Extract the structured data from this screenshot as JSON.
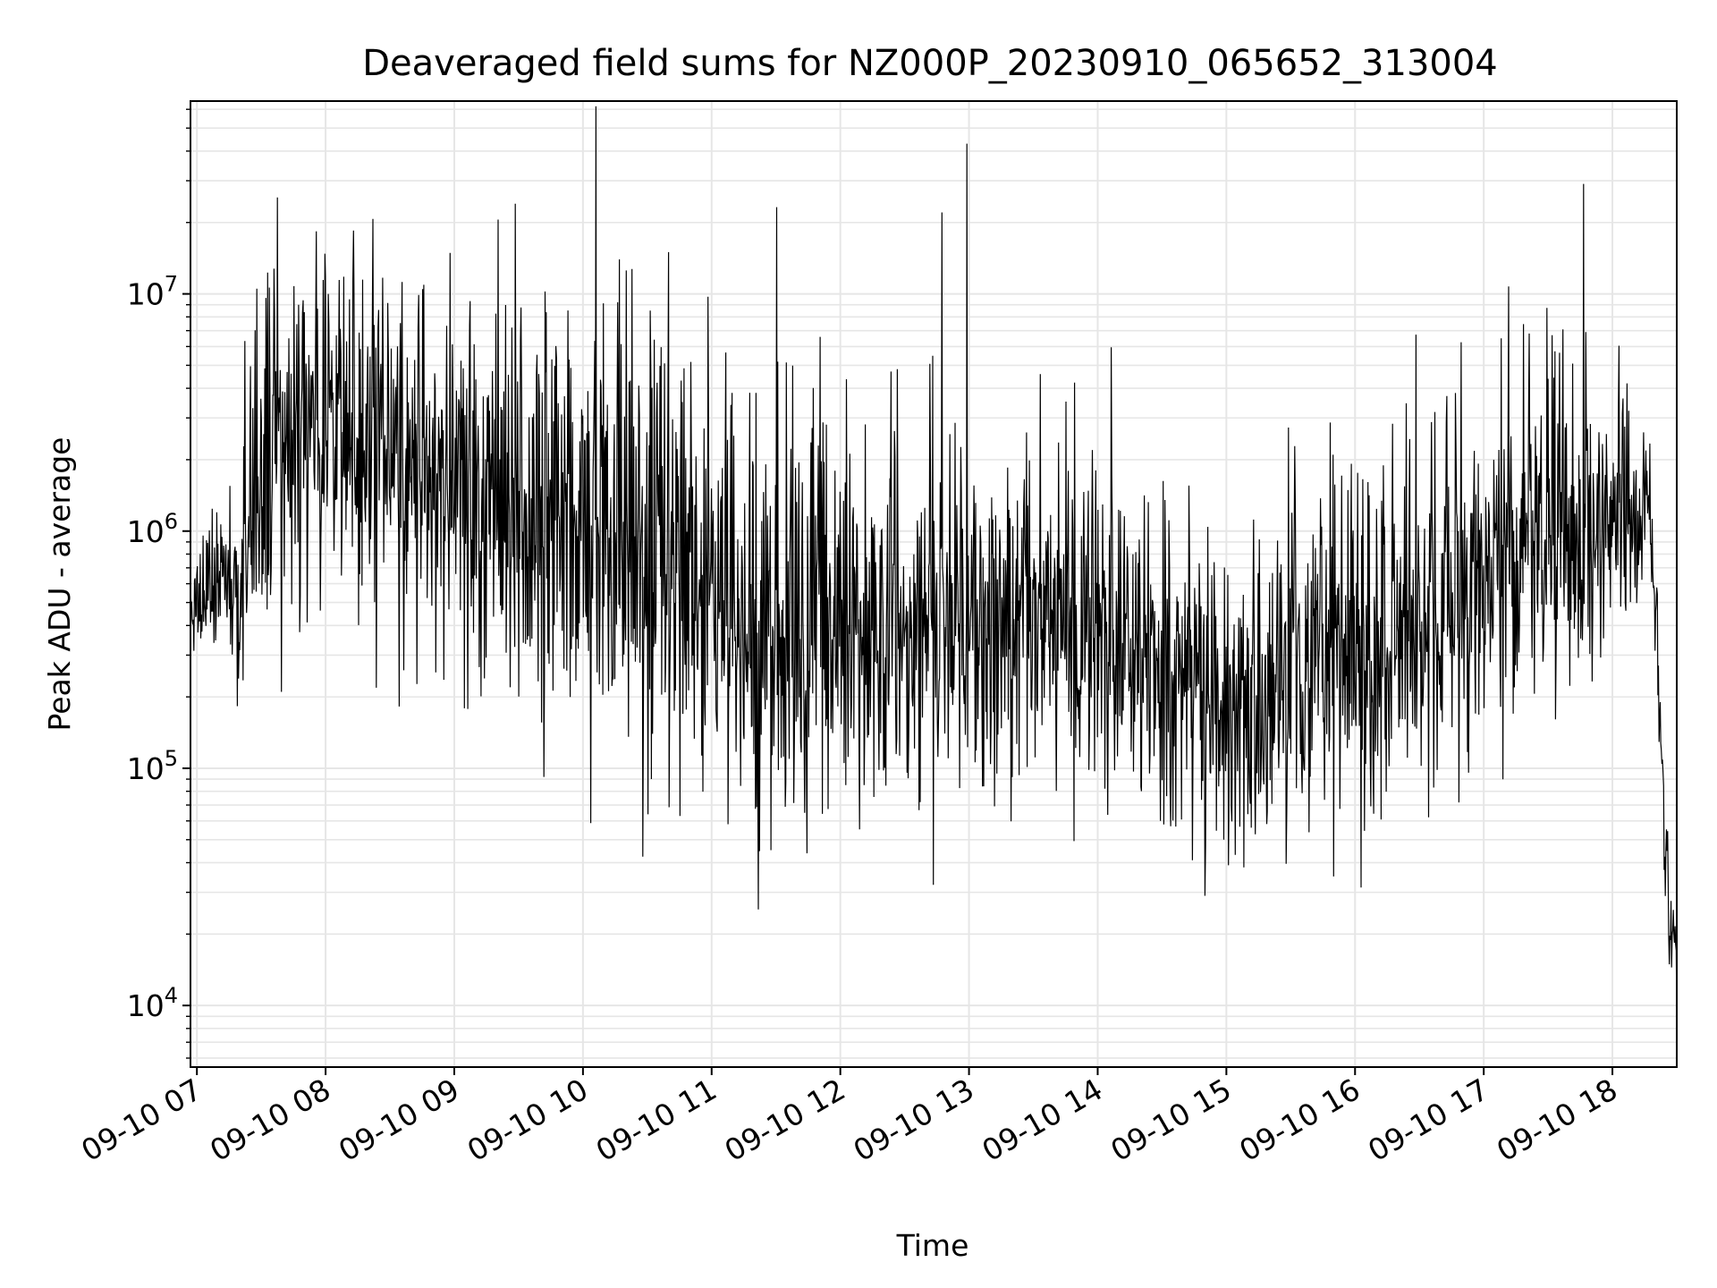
{
  "chart_data": {
    "type": "line",
    "title": "Deaveraged field sums for NZ000P_20230910_065652_313004",
    "xlabel": "Time",
    "ylabel": "Peak ADU - average",
    "yscale": "log",
    "ylim": [
      5500,
      65000000
    ],
    "xlim": [
      "2023-09-10 06:57",
      "2023-09-10 18:30"
    ],
    "grid": "on",
    "line_color": "#000000",
    "grid_color": "#e6e6e6",
    "x_tick_labels": [
      "09-10 07",
      "09-10 08",
      "09-10 09",
      "09-10 10",
      "09-10 11",
      "09-10 12",
      "09-10 13",
      "09-10 14",
      "09-10 15",
      "09-10 16",
      "09-10 17",
      "09-10 18"
    ],
    "x_tick_times": [
      "2023-09-10 07:00",
      "2023-09-10 08:00",
      "2023-09-10 09:00",
      "2023-09-10 10:00",
      "2023-09-10 11:00",
      "2023-09-10 12:00",
      "2023-09-10 13:00",
      "2023-09-10 14:00",
      "2023-09-10 15:00",
      "2023-09-10 16:00",
      "2023-09-10 17:00",
      "2023-09-10 18:00"
    ],
    "y_ticks": [
      {
        "base": "10",
        "exp": "4",
        "value": 10000
      },
      {
        "base": "10",
        "exp": "5",
        "value": 100000
      },
      {
        "base": "10",
        "exp": "6",
        "value": 1000000
      },
      {
        "base": "10",
        "exp": "7",
        "value": 10000000
      }
    ],
    "series": [
      {
        "x": [
          "2023-09-10 06:57",
          "2023-09-10 07:10",
          "2023-09-10 07:17",
          "2023-09-10 07:19",
          "2023-09-10 07:25",
          "2023-09-10 07:30",
          "2023-09-10 07:40",
          "2023-09-10 07:50",
          "2023-09-10 08:00",
          "2023-09-10 08:15",
          "2023-09-10 08:30",
          "2023-09-10 08:45",
          "2023-09-10 09:00",
          "2023-09-10 09:20",
          "2023-09-10 09:40",
          "2023-09-10 10:00",
          "2023-09-10 10:20",
          "2023-09-10 10:40",
          "2023-09-10 11:00",
          "2023-09-10 11:20",
          "2023-09-10 11:40",
          "2023-09-10 12:00",
          "2023-09-10 12:20",
          "2023-09-10 12:40",
          "2023-09-10 13:00",
          "2023-09-10 13:20",
          "2023-09-10 13:40",
          "2023-09-10 14:00",
          "2023-09-10 14:20",
          "2023-09-10 14:40",
          "2023-09-10 15:00",
          "2023-09-10 15:20",
          "2023-09-10 15:40",
          "2023-09-10 16:00",
          "2023-09-10 16:20",
          "2023-09-10 16:40",
          "2023-09-10 17:00",
          "2023-09-10 17:20",
          "2023-09-10 17:40",
          "2023-09-10 18:00",
          "2023-09-10 18:10",
          "2023-09-10 18:15",
          "2023-09-10 18:18",
          "2023-09-10 18:20",
          "2023-09-10 18:25",
          "2023-09-10 18:30"
        ],
        "y": [
          450000,
          550000,
          500000,
          330000,
          1100000,
          1700000,
          2200000,
          2800000,
          2800000,
          2600000,
          2200000,
          1800000,
          1600000,
          1400000,
          1200000,
          1000000,
          850000,
          700000,
          500000,
          380000,
          350000,
          400000,
          420000,
          420000,
          420000,
          400000,
          380000,
          370000,
          300000,
          250000,
          200000,
          210000,
          280000,
          300000,
          320000,
          480000,
          650000,
          780000,
          850000,
          900000,
          1000000,
          1100000,
          900000,
          500000,
          40000,
          14000
        ],
        "spread_decades_down": [
          0.1,
          0.2,
          0.2,
          0.2,
          0.4,
          0.6,
          0.6,
          0.6,
          0.6,
          0.6,
          0.6,
          0.7,
          0.7,
          0.7,
          0.8,
          0.8,
          0.8,
          0.8,
          0.8,
          0.8,
          0.8,
          0.7,
          0.7,
          0.7,
          0.7,
          0.6,
          0.6,
          0.6,
          0.6,
          0.6,
          0.6,
          0.6,
          0.6,
          0.6,
          0.6,
          0.6,
          0.6,
          0.6,
          0.5,
          0.4,
          0.3,
          0.2,
          0.2,
          0.2,
          0.3,
          0.2
        ],
        "spread_decades_up": [
          0.2,
          0.3,
          0.3,
          0.3,
          0.6,
          0.6,
          0.6,
          0.6,
          0.6,
          0.6,
          0.6,
          0.7,
          0.7,
          0.7,
          0.8,
          0.8,
          0.8,
          0.9,
          0.9,
          0.9,
          0.8,
          0.7,
          0.7,
          0.7,
          0.6,
          0.6,
          0.6,
          0.6,
          0.5,
          0.5,
          0.5,
          0.6,
          0.6,
          0.7,
          0.7,
          0.7,
          0.7,
          0.6,
          0.6,
          0.5,
          0.5,
          0.5,
          0.3,
          0.2,
          0.2,
          0.2
        ]
      }
    ],
    "notable_points": [
      {
        "x": "2023-09-10 12:59",
        "y": 43000000
      },
      {
        "x": "2023-09-10 08:13",
        "y": 18500000
      },
      {
        "x": "2023-09-10 14:50",
        "y": 29000
      },
      {
        "x": "2023-09-10 15:50",
        "y": 35000
      },
      {
        "x": "2023-09-10 18:30",
        "y": 8500
      }
    ]
  }
}
